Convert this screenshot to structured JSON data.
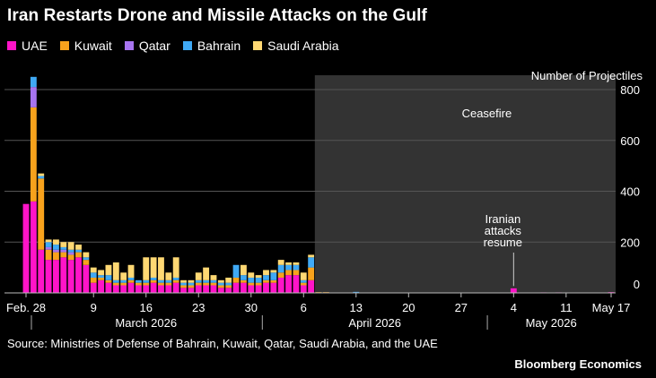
{
  "title": "Iran Restarts Drone and Missile Attacks on the Gulf",
  "source": "Source: Ministries of Defense of Bahrain, Kuwait, Qatar, Saudi Arabia, and the UAE",
  "brand": "Bloomberg Economics",
  "colors": {
    "UAE": "#ff14c8",
    "Kuwait": "#f7a21c",
    "Qatar": "#a774f0",
    "Bahrain": "#3fa9f5",
    "Saudi Arabia": "#ffd873",
    "ceasefire_shade": "#333333",
    "grid": "#555555"
  },
  "chart_data": {
    "type": "bar",
    "stacked": true,
    "ylabel": "Number of Projectiles",
    "ylim": [
      0,
      900
    ],
    "yticks": [
      0,
      200,
      400,
      600,
      800
    ],
    "grid": true,
    "legend_position": "top-left",
    "x_start": "2026-02-28",
    "x_end": "2026-05-17",
    "xtick_labels": [
      {
        "date": "2026-02-28",
        "label": "Feb. 28"
      },
      {
        "date": "2026-03-09",
        "label": "9"
      },
      {
        "date": "2026-03-16",
        "label": "16"
      },
      {
        "date": "2026-03-23",
        "label": "23"
      },
      {
        "date": "2026-03-30",
        "label": "30"
      },
      {
        "date": "2026-04-06",
        "label": "6"
      },
      {
        "date": "2026-04-13",
        "label": "13"
      },
      {
        "date": "2026-04-20",
        "label": "20"
      },
      {
        "date": "2026-04-27",
        "label": "27"
      },
      {
        "date": "2026-05-04",
        "label": "4"
      },
      {
        "date": "2026-05-11",
        "label": "11"
      },
      {
        "date": "2026-05-17",
        "label": "May 17"
      }
    ],
    "month_labels": [
      {
        "label": "March 2026",
        "from": "2026-03-01",
        "to": "2026-03-31"
      },
      {
        "label": "April 2026",
        "from": "2026-04-01",
        "to": "2026-04-30"
      },
      {
        "label": "May 2026",
        "from": "2026-05-01",
        "to": "2026-05-17"
      }
    ],
    "annotations": [
      {
        "text": "Ceasefire",
        "type": "shaded_region",
        "from": "2026-04-08",
        "to": "2026-05-17"
      },
      {
        "text": "Iranian attacks resume",
        "type": "callout",
        "date": "2026-05-04",
        "value": 20
      }
    ],
    "series_names": [
      "UAE",
      "Kuwait",
      "Qatar",
      "Bahrain",
      "Saudi Arabia"
    ],
    "bars": [
      {
        "date": "2026-02-28",
        "UAE": 350,
        "Kuwait": 0,
        "Qatar": 0,
        "Bahrain": 0,
        "Saudi Arabia": 0
      },
      {
        "date": "2026-03-01",
        "UAE": 360,
        "Kuwait": 370,
        "Qatar": 80,
        "Bahrain": 40,
        "Saudi Arabia": 0
      },
      {
        "date": "2026-03-02",
        "UAE": 170,
        "Kuwait": 280,
        "Qatar": 0,
        "Bahrain": 10,
        "Saudi Arabia": 10
      },
      {
        "date": "2026-03-03",
        "UAE": 130,
        "Kuwait": 40,
        "Qatar": 10,
        "Bahrain": 20,
        "Saudi Arabia": 10
      },
      {
        "date": "2026-03-04",
        "UAE": 130,
        "Kuwait": 30,
        "Qatar": 10,
        "Bahrain": 20,
        "Saudi Arabia": 20
      },
      {
        "date": "2026-03-05",
        "UAE": 140,
        "Kuwait": 20,
        "Qatar": 10,
        "Bahrain": 10,
        "Saudi Arabia": 20
      },
      {
        "date": "2026-03-06",
        "UAE": 130,
        "Kuwait": 20,
        "Qatar": 10,
        "Bahrain": 10,
        "Saudi Arabia": 30
      },
      {
        "date": "2026-03-07",
        "UAE": 140,
        "Kuwait": 20,
        "Qatar": 0,
        "Bahrain": 10,
        "Saudi Arabia": 20
      },
      {
        "date": "2026-03-08",
        "UAE": 110,
        "Kuwait": 20,
        "Qatar": 0,
        "Bahrain": 10,
        "Saudi Arabia": 20
      },
      {
        "date": "2026-03-09",
        "UAE": 40,
        "Kuwait": 20,
        "Qatar": 0,
        "Bahrain": 20,
        "Saudi Arabia": 20
      },
      {
        "date": "2026-03-10",
        "UAE": 50,
        "Kuwait": 10,
        "Qatar": 0,
        "Bahrain": 10,
        "Saudi Arabia": 20
      },
      {
        "date": "2026-03-11",
        "UAE": 40,
        "Kuwait": 10,
        "Qatar": 0,
        "Bahrain": 20,
        "Saudi Arabia": 40
      },
      {
        "date": "2026-03-12",
        "UAE": 30,
        "Kuwait": 10,
        "Qatar": 0,
        "Bahrain": 10,
        "Saudi Arabia": 70
      },
      {
        "date": "2026-03-13",
        "UAE": 30,
        "Kuwait": 10,
        "Qatar": 0,
        "Bahrain": 10,
        "Saudi Arabia": 30
      },
      {
        "date": "2026-03-14",
        "UAE": 40,
        "Kuwait": 10,
        "Qatar": 0,
        "Bahrain": 10,
        "Saudi Arabia": 50
      },
      {
        "date": "2026-03-15",
        "UAE": 30,
        "Kuwait": 10,
        "Qatar": 0,
        "Bahrain": 10,
        "Saudi Arabia": 0
      },
      {
        "date": "2026-03-16",
        "UAE": 30,
        "Kuwait": 10,
        "Qatar": 0,
        "Bahrain": 10,
        "Saudi Arabia": 90
      },
      {
        "date": "2026-03-17",
        "UAE": 40,
        "Kuwait": 10,
        "Qatar": 0,
        "Bahrain": 10,
        "Saudi Arabia": 80
      },
      {
        "date": "2026-03-18",
        "UAE": 30,
        "Kuwait": 10,
        "Qatar": 0,
        "Bahrain": 10,
        "Saudi Arabia": 90
      },
      {
        "date": "2026-03-19",
        "UAE": 30,
        "Kuwait": 10,
        "Qatar": 0,
        "Bahrain": 10,
        "Saudi Arabia": 30
      },
      {
        "date": "2026-03-20",
        "UAE": 40,
        "Kuwait": 10,
        "Qatar": 0,
        "Bahrain": 10,
        "Saudi Arabia": 80
      },
      {
        "date": "2026-03-21",
        "UAE": 20,
        "Kuwait": 10,
        "Qatar": 0,
        "Bahrain": 10,
        "Saudi Arabia": 10
      },
      {
        "date": "2026-03-22",
        "UAE": 20,
        "Kuwait": 10,
        "Qatar": 0,
        "Bahrain": 10,
        "Saudi Arabia": 10
      },
      {
        "date": "2026-03-23",
        "UAE": 30,
        "Kuwait": 10,
        "Qatar": 0,
        "Bahrain": 10,
        "Saudi Arabia": 30
      },
      {
        "date": "2026-03-24",
        "UAE": 30,
        "Kuwait": 10,
        "Qatar": 0,
        "Bahrain": 10,
        "Saudi Arabia": 50
      },
      {
        "date": "2026-03-25",
        "UAE": 30,
        "Kuwait": 10,
        "Qatar": 0,
        "Bahrain": 10,
        "Saudi Arabia": 20
      },
      {
        "date": "2026-03-26",
        "UAE": 20,
        "Kuwait": 10,
        "Qatar": 0,
        "Bahrain": 10,
        "Saudi Arabia": 10
      },
      {
        "date": "2026-03-27",
        "UAE": 20,
        "Kuwait": 10,
        "Qatar": 0,
        "Bahrain": 10,
        "Saudi Arabia": 20
      },
      {
        "date": "2026-03-28",
        "UAE": 40,
        "Kuwait": 20,
        "Qatar": 0,
        "Bahrain": 50,
        "Saudi Arabia": 0
      },
      {
        "date": "2026-03-29",
        "UAE": 40,
        "Kuwait": 10,
        "Qatar": 0,
        "Bahrain": 20,
        "Saudi Arabia": 40
      },
      {
        "date": "2026-03-30",
        "UAE": 30,
        "Kuwait": 10,
        "Qatar": 0,
        "Bahrain": 20,
        "Saudi Arabia": 20
      },
      {
        "date": "2026-03-31",
        "UAE": 30,
        "Kuwait": 10,
        "Qatar": 0,
        "Bahrain": 20,
        "Saudi Arabia": 10
      },
      {
        "date": "2026-04-01",
        "UAE": 40,
        "Kuwait": 10,
        "Qatar": 0,
        "Bahrain": 20,
        "Saudi Arabia": 20
      },
      {
        "date": "2026-04-02",
        "UAE": 40,
        "Kuwait": 10,
        "Qatar": 0,
        "Bahrain": 30,
        "Saudi Arabia": 10
      },
      {
        "date": "2026-04-03",
        "UAE": 60,
        "Kuwait": 20,
        "Qatar": 0,
        "Bahrain": 30,
        "Saudi Arabia": 20
      },
      {
        "date": "2026-04-04",
        "UAE": 70,
        "Kuwait": 20,
        "Qatar": 0,
        "Bahrain": 20,
        "Saudi Arabia": 10
      },
      {
        "date": "2026-04-05",
        "UAE": 70,
        "Kuwait": 20,
        "Qatar": 0,
        "Bahrain": 20,
        "Saudi Arabia": 10
      },
      {
        "date": "2026-04-06",
        "UAE": 30,
        "Kuwait": 10,
        "Qatar": 0,
        "Bahrain": 10,
        "Saudi Arabia": 30
      },
      {
        "date": "2026-04-07",
        "UAE": 50,
        "Kuwait": 50,
        "Qatar": 0,
        "Bahrain": 40,
        "Saudi Arabia": 10
      },
      {
        "date": "2026-04-08",
        "UAE": 0,
        "Kuwait": 3,
        "Qatar": 0,
        "Bahrain": 0,
        "Saudi Arabia": 0
      },
      {
        "date": "2026-04-09",
        "UAE": 0,
        "Kuwait": 3,
        "Qatar": 0,
        "Bahrain": 0,
        "Saudi Arabia": 0
      },
      {
        "date": "2026-04-13",
        "UAE": 0,
        "Kuwait": 0,
        "Qatar": 0,
        "Bahrain": 4,
        "Saudi Arabia": 0
      },
      {
        "date": "2026-05-04",
        "UAE": 18,
        "Kuwait": 0,
        "Qatar": 0,
        "Bahrain": 0,
        "Saudi Arabia": 0
      },
      {
        "date": "2026-05-08",
        "UAE": 2,
        "Kuwait": 0,
        "Qatar": 0,
        "Bahrain": 0,
        "Saudi Arabia": 0
      },
      {
        "date": "2026-05-10",
        "UAE": 2,
        "Kuwait": 0,
        "Qatar": 0,
        "Bahrain": 0,
        "Saudi Arabia": 0
      },
      {
        "date": "2026-05-17",
        "UAE": 3,
        "Kuwait": 0,
        "Qatar": 0,
        "Bahrain": 0,
        "Saudi Arabia": 0
      }
    ]
  }
}
